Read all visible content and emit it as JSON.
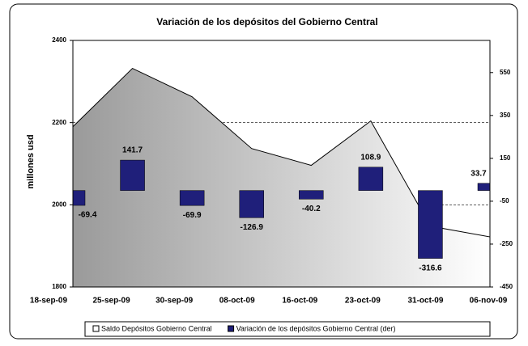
{
  "chart_data": {
    "type": "area_bar",
    "title": "Variación de los depósitos  del Gobierno Central",
    "y_label": "millones usd",
    "categories": [
      "18-sep-09",
      "25-sep-09",
      "30-sep-09",
      "08-oct-09",
      "16-oct-09",
      "23-oct-09",
      "31-oct-09",
      "06-nov-09"
    ],
    "series": [
      {
        "name": "Saldo Depósitos Gobierno Central",
        "type": "area",
        "color": "#b0b0b0",
        "values": [
          2190,
          2332,
          2263,
          2137,
          2096,
          2204,
          1948,
          1922
        ]
      },
      {
        "name": "Variación de los depósitos Gobierno Central (der)",
        "type": "bar",
        "axis": "y2",
        "color": "#1f1f7a",
        "values": [
          -69.4,
          141.7,
          -69.9,
          -126.9,
          -40.2,
          108.9,
          -316.6,
          33.7
        ]
      }
    ],
    "ylim": [
      1800,
      2400
    ],
    "yticks": [
      1800,
      2000,
      2200,
      2400
    ],
    "y2lim": [
      -450,
      700
    ],
    "y2ticks": [
      -450,
      -250,
      -50,
      150,
      350,
      550
    ],
    "grid": true,
    "legend": "bottom"
  }
}
